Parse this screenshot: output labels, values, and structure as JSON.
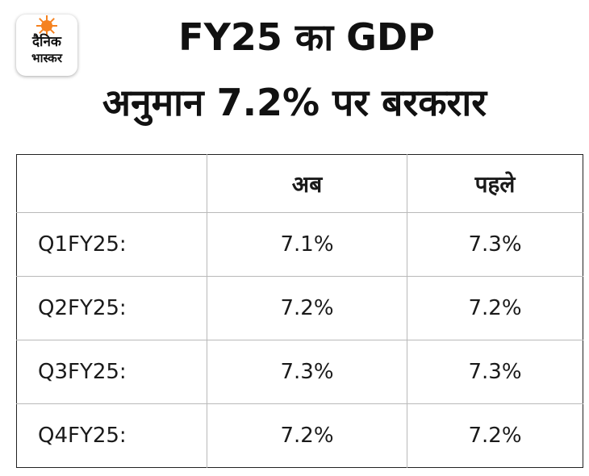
{
  "logo": {
    "line1": "दैनिक",
    "line2": "भास्कर",
    "color": "#f58220"
  },
  "title": {
    "line1": "FY25 का GDP",
    "line2": "अनुमान  7.2% पर बरकरार"
  },
  "table": {
    "headers": [
      "",
      "अब",
      "पहले"
    ],
    "rows": [
      {
        "period": "Q1FY25:",
        "now": "7.1%",
        "before": "7.3%"
      },
      {
        "period": "Q2FY25:",
        "now": "7.2%",
        "before": "7.2%"
      },
      {
        "period": "Q3FY25:",
        "now": "7.3%",
        "before": "7.3%"
      },
      {
        "period": "Q4FY25:",
        "now": "7.2%",
        "before": "7.2%"
      }
    ]
  }
}
